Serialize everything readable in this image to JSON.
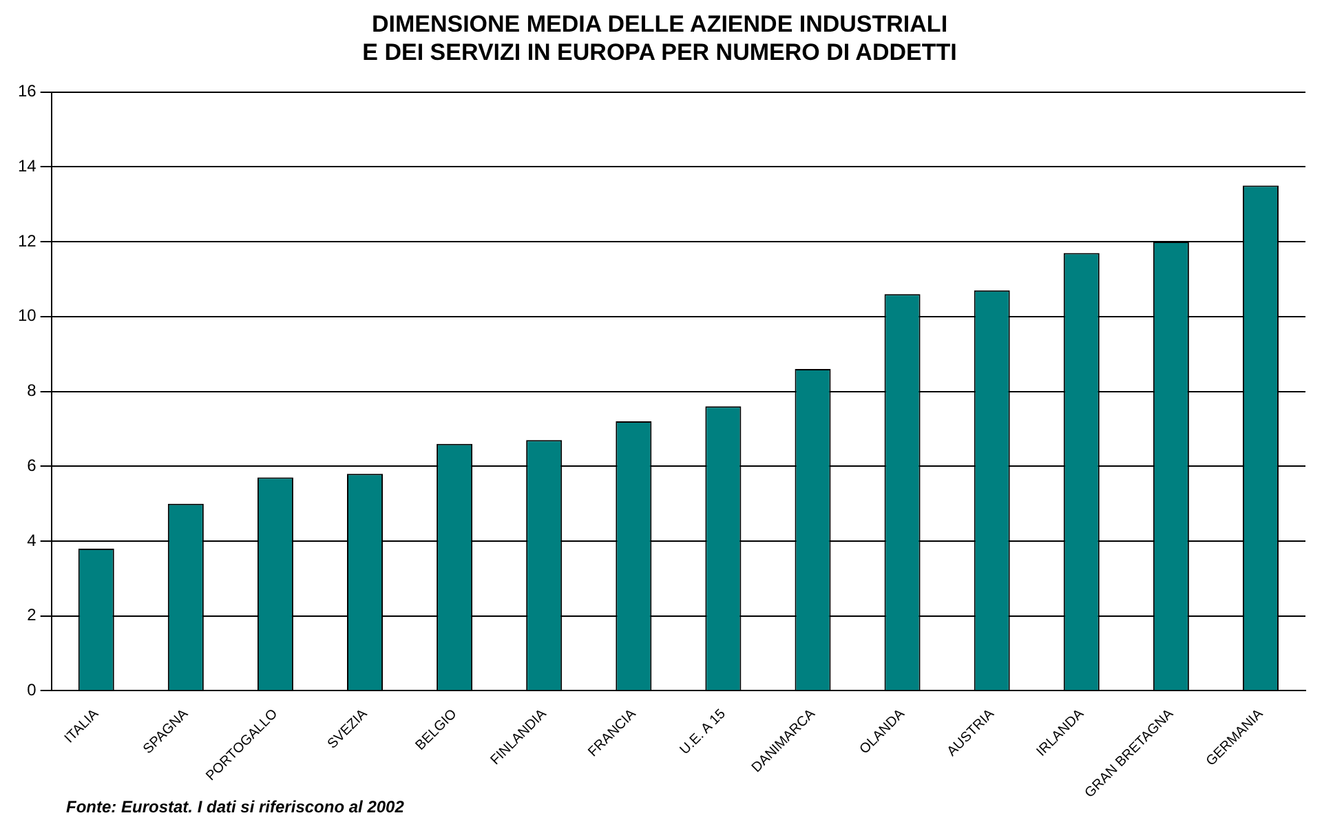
{
  "chart_data": {
    "type": "bar",
    "title": "DIMENSIONE MEDIA DELLE AZIENDE INDUSTRIALI\nE DEI SERVIZI IN EUROPA PER NUMERO DI ADDETTI",
    "categories": [
      "ITALIA",
      "SPAGNA",
      "PORTOGALLO",
      "SVEZIA",
      "BELGIO",
      "FINLANDIA",
      "FRANCIA",
      "U.E. A 15",
      "DANIMARCA",
      "OLANDA",
      "AUSTRIA",
      "IRLANDA",
      "GRAN BRETAGNA",
      "GERMANIA"
    ],
    "values": [
      3.8,
      5.0,
      5.7,
      5.8,
      6.6,
      6.7,
      7.2,
      7.6,
      8.6,
      10.6,
      10.7,
      11.7,
      12.0,
      13.5
    ],
    "color": "#008080",
    "ylim": [
      0,
      16
    ],
    "yticks": [
      0,
      2,
      4,
      6,
      8,
      10,
      12,
      14,
      16
    ],
    "grid": "y",
    "annotations": [
      "Fonte: Eurostat. I dati si riferiscono al 2002"
    ]
  }
}
